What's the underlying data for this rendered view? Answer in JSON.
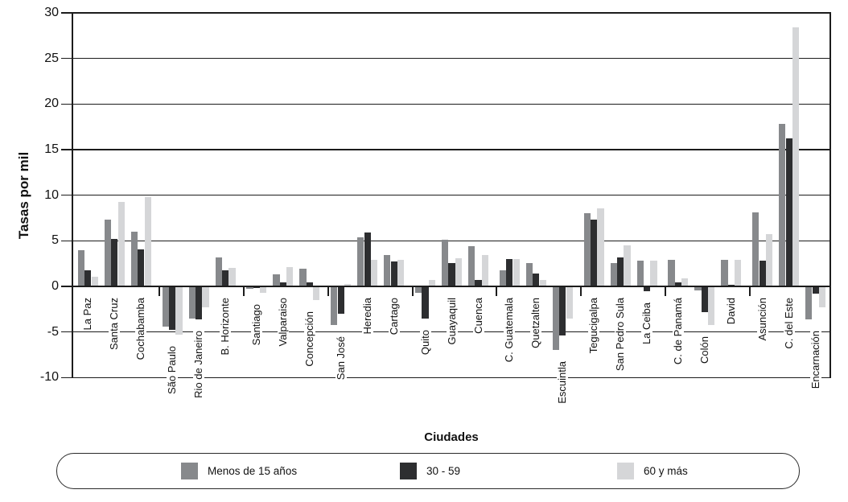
{
  "figure": {
    "y_axis": {
      "label": "Tasas por mil",
      "ticks": [
        30,
        25,
        20,
        15,
        10,
        5,
        0,
        -5,
        -10
      ]
    },
    "x_axis": {
      "label": "Ciudades"
    },
    "legend": {
      "items": [
        {
          "label": "Menos de 15 años",
          "color": "#87898c"
        },
        {
          "label": "30 - 59",
          "color": "#2d2e30"
        },
        {
          "label": "60 y más",
          "color": "#d5d6d8"
        }
      ]
    }
  },
  "chart_data": {
    "type": "bar",
    "title": "",
    "ylabel": "Tasas por mil",
    "xlabel": "Ciudades",
    "ylim": [
      -10,
      30
    ],
    "ytick_step": 5,
    "grid": true,
    "legend_position": "bottom",
    "country_group_size": 3,
    "categories": [
      "La Paz",
      "Santa Cruz",
      "Cochabamba",
      "São Paulo",
      "Rio de Janeiro",
      "B. Horizonte",
      "Santiago",
      "Valparaiso",
      "Concepción",
      "San José",
      "Heredia",
      "Cartago",
      "Quito",
      "Guayaquil",
      "Cuenca",
      "C. Guatemala",
      "Quetzalten",
      "Escuintla",
      "Tegucigalpa",
      "San Pedro Sula",
      "La Ceiba",
      "C. de Panamá",
      "Colón",
      "David",
      "Asunción",
      "C. del Este",
      "Encarnación"
    ],
    "series": [
      {
        "name": "Menos de 15 años",
        "color": "#87898c",
        "values": [
          4.0,
          7.3,
          6.0,
          -4.4,
          -3.5,
          3.2,
          -0.3,
          1.3,
          1.9,
          -4.2,
          5.4,
          3.4,
          -0.7,
          5.1,
          4.4,
          1.8,
          2.6,
          -7.0,
          8.0,
          2.6,
          2.8,
          2.9,
          -0.4,
          2.9,
          8.1,
          17.8,
          -3.6
        ]
      },
      {
        "name": "30 - 59",
        "color": "#2d2e30",
        "values": [
          1.8,
          5.2,
          4.1,
          -4.8,
          -3.6,
          1.8,
          -0.15,
          0.4,
          0.4,
          -3.0,
          5.9,
          2.7,
          -3.5,
          2.6,
          0.7,
          3.0,
          1.4,
          -5.4,
          7.3,
          3.2,
          -0.5,
          0.4,
          -2.8,
          0.2,
          2.8,
          16.2,
          -0.8
        ]
      },
      {
        "name": "60 y más",
        "color": "#d5d6d8",
        "values": [
          1.1,
          9.3,
          9.8,
          -5.3,
          -2.3,
          2.0,
          -0.75,
          2.1,
          -1.5,
          0.3,
          2.9,
          2.9,
          0.7,
          3.1,
          3.4,
          3.0,
          0.7,
          -3.5,
          8.6,
          4.5,
          2.8,
          0.9,
          -4.2,
          2.9,
          5.7,
          28.4,
          -2.3
        ]
      }
    ]
  }
}
